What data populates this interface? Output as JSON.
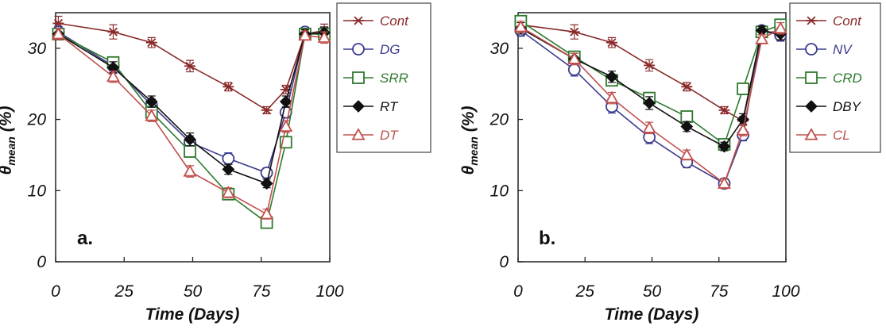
{
  "chart_data": [
    {
      "type": "line",
      "panel_label": "a.",
      "xlabel": "Time  (Days)",
      "ylabel_main": "θ",
      "ylabel_sub": "mean",
      "ylabel_unit": "(%)",
      "xlim": [
        0,
        100
      ],
      "ylim": [
        0,
        35
      ],
      "xticks": [
        0,
        25,
        50,
        75,
        100
      ],
      "yticks": [
        0,
        10,
        20,
        30
      ],
      "legend_position": "right",
      "series": [
        {
          "name": "Cont",
          "color": "#8b2a2a",
          "marker": "asterisk",
          "x": [
            1,
            21,
            35,
            49,
            63,
            77,
            84,
            91,
            98
          ],
          "y": [
            33.5,
            32.3,
            30.8,
            27.5,
            24.6,
            21.3,
            24.2,
            32.0,
            32.5
          ],
          "err": [
            1.0,
            1.0,
            0.7,
            0.8,
            0.6,
            0.5,
            0.6,
            0.8,
            0.9
          ]
        },
        {
          "name": "DG",
          "color": "#3b3b8f",
          "marker": "circle",
          "x": [
            1,
            21,
            35,
            49,
            63,
            77,
            84,
            91,
            98
          ],
          "y": [
            32.3,
            27.5,
            22.0,
            16.8,
            14.5,
            12.5,
            21.0,
            32.3,
            31.8
          ],
          "err": [
            0.8,
            0.9,
            0.9,
            0.9,
            0.8,
            0.7,
            0.8,
            0.6,
            0.8
          ]
        },
        {
          "name": "SRR",
          "color": "#2f7a2f",
          "marker": "square",
          "x": [
            1,
            21,
            35,
            49,
            63,
            77,
            84,
            91,
            98
          ],
          "y": [
            32.0,
            28.0,
            21.0,
            15.5,
            9.5,
            5.5,
            16.8,
            32.0,
            32.0
          ],
          "err": [
            0.8,
            0.8,
            0.8,
            0.8,
            0.6,
            0.6,
            0.8,
            0.6,
            0.8
          ]
        },
        {
          "name": "RT",
          "color": "#111111",
          "marker": "diamond",
          "x": [
            1,
            21,
            35,
            49,
            63,
            77,
            84,
            91,
            98
          ],
          "y": [
            32.0,
            27.3,
            22.5,
            17.2,
            13.0,
            11.0,
            22.5,
            32.0,
            32.2
          ],
          "err": [
            0.8,
            0.8,
            0.8,
            0.9,
            0.7,
            0.6,
            0.8,
            0.6,
            0.8
          ]
        },
        {
          "name": "DT",
          "color": "#c0504d",
          "marker": "triangle",
          "x": [
            1,
            21,
            35,
            49,
            63,
            77,
            84,
            91,
            98
          ],
          "y": [
            32.0,
            26.0,
            20.5,
            12.7,
            9.7,
            6.7,
            19.0,
            31.8,
            31.5
          ],
          "err": [
            0.8,
            0.8,
            0.8,
            0.8,
            0.7,
            0.7,
            0.8,
            0.6,
            0.8
          ]
        }
      ]
    },
    {
      "type": "line",
      "panel_label": "b.",
      "xlabel": "Time  (Days)",
      "ylabel_main": "θ",
      "ylabel_sub": "mean",
      "ylabel_unit": "(%)",
      "xlim": [
        0,
        100
      ],
      "ylim": [
        0,
        35
      ],
      "xticks": [
        0,
        25,
        50,
        75,
        100
      ],
      "yticks": [
        0,
        10,
        20,
        30
      ],
      "legend_position": "right",
      "series": [
        {
          "name": "Cont",
          "color": "#8b2a2a",
          "marker": "asterisk",
          "x": [
            1,
            21,
            35,
            49,
            63,
            77,
            84,
            91,
            98
          ],
          "y": [
            33.3,
            32.3,
            30.8,
            27.6,
            24.6,
            21.3,
            19.8,
            32.0,
            32.5
          ],
          "err": [
            1.0,
            1.0,
            0.7,
            0.8,
            0.6,
            0.5,
            0.6,
            0.8,
            0.9
          ]
        },
        {
          "name": "NV",
          "color": "#3b3b8f",
          "marker": "circle",
          "x": [
            1,
            21,
            35,
            49,
            63,
            77,
            84,
            91,
            98
          ],
          "y": [
            32.5,
            27.0,
            21.8,
            17.5,
            14.0,
            11.0,
            17.8,
            32.5,
            31.8
          ],
          "err": [
            0.8,
            0.9,
            0.9,
            0.9,
            0.8,
            0.7,
            0.8,
            0.6,
            0.8
          ]
        },
        {
          "name": "CRD",
          "color": "#2f7a2f",
          "marker": "square",
          "x": [
            1,
            21,
            35,
            49,
            63,
            77,
            84,
            91,
            98
          ],
          "y": [
            33.8,
            28.8,
            25.5,
            23.0,
            20.4,
            16.5,
            24.3,
            32.3,
            33.3
          ],
          "err": [
            0.8,
            0.8,
            0.8,
            0.8,
            0.6,
            0.6,
            0.8,
            0.6,
            0.8
          ]
        },
        {
          "name": "DBY",
          "color": "#111111",
          "marker": "diamond",
          "x": [
            1,
            21,
            35,
            49,
            63,
            77,
            84,
            91,
            98
          ],
          "y": [
            32.8,
            28.5,
            26.0,
            22.3,
            19.0,
            16.2,
            20.0,
            32.5,
            32.0
          ],
          "err": [
            0.8,
            0.8,
            0.8,
            0.9,
            0.7,
            0.6,
            0.8,
            0.6,
            0.8
          ]
        },
        {
          "name": "CL",
          "color": "#c0504d",
          "marker": "triangle",
          "x": [
            1,
            21,
            35,
            49,
            63,
            77,
            84,
            91,
            98
          ],
          "y": [
            33.0,
            28.5,
            23.0,
            18.8,
            15.0,
            11.0,
            18.5,
            31.3,
            32.8
          ],
          "err": [
            0.8,
            0.8,
            0.8,
            0.8,
            0.7,
            0.7,
            0.8,
            0.6,
            0.8
          ]
        }
      ]
    }
  ]
}
